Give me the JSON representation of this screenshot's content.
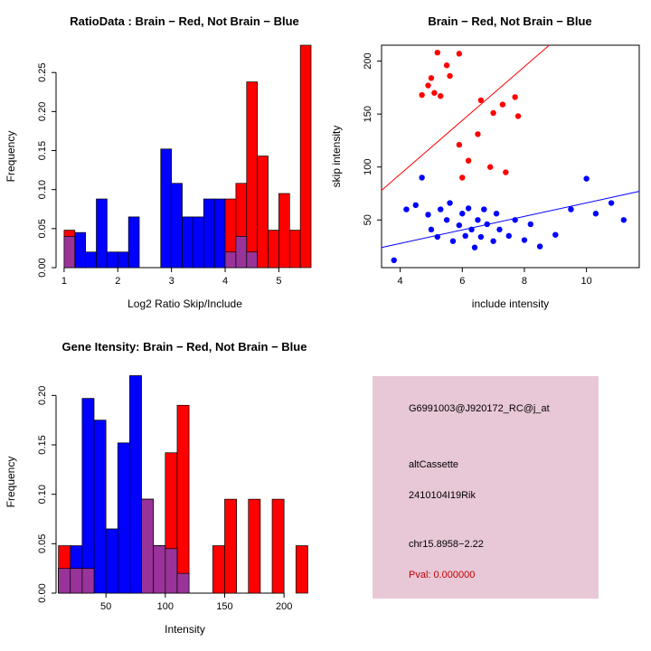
{
  "colors": {
    "red": "#ff0000",
    "blue": "#0000ff",
    "overlap": "#993399",
    "axis": "#000000",
    "background": "#ffffff"
  },
  "info_card": {
    "probe_id": "G6991003@J920172_RC@j_at",
    "splice_type": "altCassette",
    "gene_name": "2410104I19Rik",
    "location": "chr15.8958−2.22",
    "pval": "Pval: 0.000000",
    "bg_color": "#e8c7d6",
    "pval_color": "#c00000"
  },
  "chart_data": [
    {
      "id": "ratio_hist",
      "type": "bar",
      "title": "RatioData : Brain − Red, Not Brain − Blue",
      "xlabel": "Log2 Ratio Skip/Include",
      "ylabel": "Frequency",
      "bin_start": 1.0,
      "bin_width": 0.2,
      "xlim": [
        0.85,
        5.65
      ],
      "ylim": [
        0,
        0.285
      ],
      "xticks": [
        1,
        2,
        3,
        4,
        5
      ],
      "yticks": [
        0,
        0.05,
        0.1,
        0.15,
        0.2,
        0.25
      ],
      "ytick_labels": [
        "0.00",
        "0.05",
        "0.10",
        "0.15",
        "0.20",
        "0.25"
      ],
      "overlap_color": "#993399",
      "grid": false,
      "series": [
        {
          "name": "Not Brain (blue)",
          "color": "#0000ff",
          "values": [
            0.04,
            0.045,
            0.02,
            0.088,
            0.02,
            0.02,
            0.065,
            0,
            0,
            0.152,
            0.108,
            0.065,
            0.065,
            0.088,
            0.088,
            0.02,
            0.04,
            0.02,
            0,
            0,
            0,
            0,
            0
          ]
        },
        {
          "name": "Brain (red)",
          "color": "#ff0000",
          "values": [
            0.048,
            0,
            0,
            0,
            0,
            0,
            0,
            0,
            0,
            0,
            0,
            0,
            0,
            0,
            0,
            0.088,
            0.108,
            0.238,
            0.143,
            0.048,
            0.095,
            0.048,
            0.285
          ]
        }
      ]
    },
    {
      "id": "scatter",
      "type": "scatter",
      "title": "Brain − Red, Not Brain − Blue",
      "xlabel": "include intensity",
      "ylabel": "skip intensity",
      "xlim": [
        3.4,
        11.7
      ],
      "ylim": [
        5,
        215
      ],
      "xticks": [
        4,
        6,
        8,
        10
      ],
      "yticks": [
        50,
        100,
        150,
        200
      ],
      "grid": false,
      "series": [
        {
          "name": "Brain (red)",
          "color": "#ff0000",
          "fit_line": {
            "x": [
              3.4,
              8.8
            ],
            "y": [
              78,
              215
            ]
          },
          "points": [
            [
              5.2,
              208
            ],
            [
              5.9,
              207
            ],
            [
              5.5,
              196
            ],
            [
              5.0,
              184
            ],
            [
              4.9,
              177
            ],
            [
              5.1,
              170
            ],
            [
              4.7,
              168
            ],
            [
              5.3,
              167
            ],
            [
              5.6,
              186
            ],
            [
              6.6,
              163
            ],
            [
              7.3,
              159
            ],
            [
              7.7,
              166
            ],
            [
              7.0,
              151
            ],
            [
              6.5,
              131
            ],
            [
              7.8,
              148
            ],
            [
              5.9,
              121
            ],
            [
              6.2,
              106
            ],
            [
              6.9,
              100
            ],
            [
              7.4,
              95
            ],
            [
              6.0,
              90
            ]
          ]
        },
        {
          "name": "Not Brain (blue)",
          "color": "#0000ff",
          "fit_line": {
            "x": [
              3.4,
              11.7
            ],
            "y": [
              24,
              77
            ]
          },
          "points": [
            [
              3.8,
              12
            ],
            [
              4.2,
              60
            ],
            [
              4.5,
              64
            ],
            [
              4.7,
              90
            ],
            [
              4.9,
              55
            ],
            [
              5.0,
              41
            ],
            [
              5.2,
              34
            ],
            [
              5.3,
              60
            ],
            [
              5.5,
              50
            ],
            [
              5.6,
              66
            ],
            [
              5.7,
              30
            ],
            [
              5.9,
              45
            ],
            [
              6.0,
              56
            ],
            [
              6.1,
              35
            ],
            [
              6.2,
              61
            ],
            [
              6.3,
              41
            ],
            [
              6.4,
              24
            ],
            [
              6.5,
              50
            ],
            [
              6.6,
              34
            ],
            [
              6.7,
              60
            ],
            [
              6.8,
              46
            ],
            [
              7.0,
              30
            ],
            [
              7.1,
              56
            ],
            [
              7.2,
              41
            ],
            [
              7.5,
              35
            ],
            [
              7.7,
              50
            ],
            [
              8.0,
              31
            ],
            [
              8.2,
              46
            ],
            [
              8.5,
              25
            ],
            [
              9.0,
              36
            ],
            [
              9.5,
              60
            ],
            [
              10.0,
              89
            ],
            [
              10.3,
              56
            ],
            [
              10.8,
              66
            ],
            [
              11.2,
              50
            ]
          ]
        }
      ]
    },
    {
      "id": "gene_hist",
      "type": "bar",
      "title": "Gene Itensity: Brain − Red, Not Brain − Blue",
      "xlabel": "Intensity",
      "ylabel": "Frequency",
      "bin_start": 10,
      "bin_width": 10,
      "xlim": [
        8,
        225
      ],
      "ylim": [
        0,
        0.225
      ],
      "xticks": [
        50,
        100,
        150,
        200
      ],
      "yticks": [
        0,
        0.05,
        0.1,
        0.15,
        0.2
      ],
      "ytick_labels": [
        "0.00",
        "0.05",
        "0.10",
        "0.15",
        "0.20"
      ],
      "overlap_color": "#993399",
      "grid": false,
      "series": [
        {
          "name": "Not Brain (blue)",
          "color": "#0000ff",
          "values": [
            0.025,
            0.048,
            0.197,
            0.175,
            0.065,
            0.152,
            0.22,
            0.095,
            0.048,
            0.045,
            0.02,
            0,
            0,
            0,
            0,
            0,
            0,
            0,
            0,
            0,
            0
          ]
        },
        {
          "name": "Brain (red)",
          "color": "#ff0000",
          "values": [
            0.048,
            0.025,
            0.025,
            0,
            0,
            0,
            0,
            0.095,
            0.048,
            0.142,
            0.19,
            0,
            0,
            0.048,
            0.095,
            0,
            0.095,
            0,
            0.095,
            0,
            0.048
          ]
        }
      ]
    }
  ]
}
